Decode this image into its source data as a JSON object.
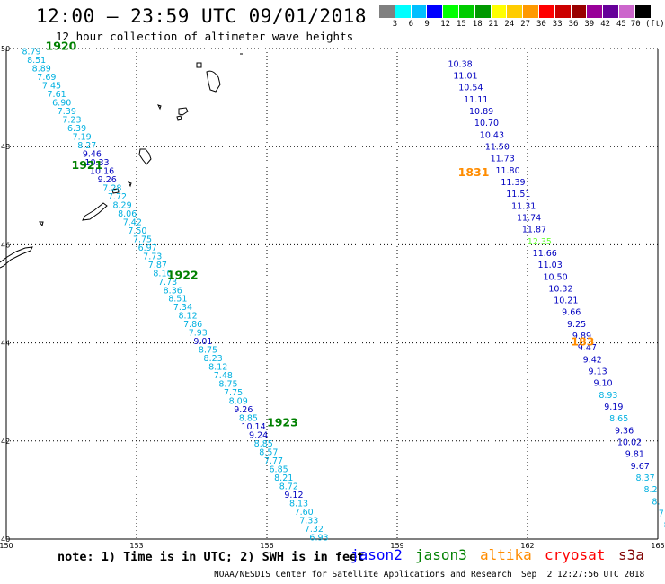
{
  "title": "12:00 — 23:59 UTC 09/01/2018",
  "subtitle": "12 hour collection of altimeter wave heights",
  "colorbar": {
    "colors": [
      "#808080",
      "#00ffff",
      "#00bfff",
      "#0000ff",
      "#00ff00",
      "#00cc00",
      "#009900",
      "#ffff00",
      "#ffcc00",
      "#ff9900",
      "#ff0000",
      "#cc0000",
      "#990000",
      "#990099",
      "#660099",
      "#cc66cc",
      "#000000"
    ],
    "labels": [
      "3",
      "6",
      "9",
      "12",
      "15",
      "18",
      "21",
      "24",
      "27",
      "30",
      "33",
      "36",
      "39",
      "42",
      "45",
      "70 (ft)"
    ]
  },
  "axes": {
    "lon_labels": [
      "150",
      "153",
      "156",
      "159",
      "162",
      "165"
    ],
    "lat_labels": [
      "50",
      "48",
      "46",
      "44",
      "42",
      "40"
    ]
  },
  "map_data": {
    "lon_range": [
      150,
      165
    ],
    "lat_range": [
      40,
      50
    ],
    "track_colors": {
      "light": "#00b0e0",
      "dark": "#0000c0",
      "lime": "#66ff33"
    },
    "times": [
      {
        "label": "1920",
        "lon": 150.9,
        "lat": 49.97,
        "color": "#008000"
      },
      {
        "label": "1921",
        "lon": 151.5,
        "lat": 47.55,
        "color": "#008000"
      },
      {
        "label": "1922",
        "lon": 153.7,
        "lat": 45.3,
        "color": "#008000"
      },
      {
        "label": "1923",
        "lon": 156.0,
        "lat": 42.3,
        "color": "#008000"
      },
      {
        "label": "1831",
        "lon": 160.4,
        "lat": 47.4,
        "color": "#ff8c00"
      },
      {
        "label": "183",
        "lon": 163.0,
        "lat": 43.95,
        "color": "#ff8c00"
      }
    ],
    "tracks": [
      {
        "start": [
          150.58,
          49.95
        ],
        "end": [
          157.2,
          40.05
        ],
        "points": [
          [
            "8.79",
            "l"
          ],
          [
            "8.51",
            "l"
          ],
          [
            "8.89",
            "l"
          ],
          [
            "7.69",
            "l"
          ],
          [
            "7.45",
            "l"
          ],
          [
            "7.61",
            "l"
          ],
          [
            "6.90",
            "l"
          ],
          [
            "7.39",
            "l"
          ],
          [
            "7.23",
            "l"
          ],
          [
            "6.39",
            "l"
          ],
          [
            "7.19",
            "l"
          ],
          [
            "8.27",
            "l"
          ],
          [
            "9.46",
            "d"
          ],
          [
            "10.33",
            "d"
          ],
          [
            "10.16",
            "d"
          ],
          [
            "9.26",
            "d"
          ],
          [
            "7.28",
            "l"
          ],
          [
            "7.72",
            "l"
          ],
          [
            "8.29",
            "l"
          ],
          [
            "8.06",
            "l"
          ],
          [
            "7.42",
            "l"
          ],
          [
            "7.50",
            "l"
          ],
          [
            "7.75",
            "l"
          ],
          [
            "6.97",
            "l"
          ],
          [
            "7.73",
            "l"
          ],
          [
            "7.87",
            "l"
          ],
          [
            "8.10",
            "l"
          ],
          [
            "7.73",
            "l"
          ],
          [
            "8.36",
            "l"
          ],
          [
            "8.51",
            "l"
          ],
          [
            "7.34",
            "l"
          ],
          [
            "8.12",
            "l"
          ],
          [
            "7.86",
            "l"
          ],
          [
            "7.93",
            "l"
          ],
          [
            "9.01",
            "d"
          ],
          [
            "8.75",
            "l"
          ],
          [
            "8.23",
            "l"
          ],
          [
            "8.12",
            "l"
          ],
          [
            "7.48",
            "l"
          ],
          [
            "8.75",
            "l"
          ],
          [
            "7.75",
            "l"
          ],
          [
            "8.09",
            "l"
          ],
          [
            "9.26",
            "d"
          ],
          [
            "8.85",
            "l"
          ],
          [
            "10.14",
            "d"
          ],
          [
            "9.24",
            "d"
          ],
          [
            "8.85",
            "l"
          ],
          [
            "8.57",
            "l"
          ],
          [
            "7.77",
            "l"
          ],
          [
            "6.85",
            "l"
          ],
          [
            "8.21",
            "l"
          ],
          [
            "8.72",
            "l"
          ],
          [
            "9.12",
            "d"
          ],
          [
            "8.13",
            "l"
          ],
          [
            "7.60",
            "l"
          ],
          [
            "7.33",
            "l"
          ],
          [
            "7.32",
            "l"
          ],
          [
            "6.93",
            "l"
          ]
        ]
      },
      {
        "start": [
          160.45,
          49.7
        ],
        "end": [
          165.2,
          40.3
        ],
        "points": [
          [
            "10.38",
            "d"
          ],
          [
            "11.01",
            "d"
          ],
          [
            "10.54",
            "d"
          ],
          [
            "11.11",
            "d"
          ],
          [
            "10.89",
            "d"
          ],
          [
            "10.70",
            "d"
          ],
          [
            "10.43",
            "d"
          ],
          [
            "11.50",
            "d"
          ],
          [
            "11.73",
            "d"
          ],
          [
            "11.80",
            "d"
          ],
          [
            "11.39",
            "d"
          ],
          [
            "11.51",
            "d"
          ],
          [
            "11.31",
            "d"
          ],
          [
            "11.74",
            "d"
          ],
          [
            "11.87",
            "d"
          ],
          [
            "12.35",
            "g"
          ],
          [
            "11.66",
            "d"
          ],
          [
            "11.03",
            "d"
          ],
          [
            "10.50",
            "d"
          ],
          [
            "10.32",
            "d"
          ],
          [
            "10.21",
            "d"
          ],
          [
            "9.66",
            "d"
          ],
          [
            "9.25",
            "d"
          ],
          [
            "9.89",
            "d"
          ],
          [
            "9.47",
            "d"
          ],
          [
            "9.42",
            "d"
          ],
          [
            "9.13",
            "d"
          ],
          [
            "9.10",
            "d"
          ],
          [
            "8.93",
            "l"
          ],
          [
            "9.19",
            "d"
          ],
          [
            "8.65",
            "l"
          ],
          [
            "9.36",
            "d"
          ],
          [
            "10.02",
            "d"
          ],
          [
            "9.81",
            "d"
          ],
          [
            "9.67",
            "d"
          ],
          [
            "8.37",
            "l"
          ],
          [
            "8.2",
            "l"
          ],
          [
            "8.",
            "l"
          ],
          [
            "7",
            "l"
          ],
          [
            "8",
            "l"
          ]
        ]
      }
    ]
  },
  "note": "note: 1) Time is in UTC; 2) SWH is in feet",
  "satellites": [
    {
      "name": "jason2",
      "color": "#0000ff"
    },
    {
      "name": "jason3",
      "color": "#008000"
    },
    {
      "name": "altika",
      "color": "#ff8c00"
    },
    {
      "name": "cryosat",
      "color": "#ff0000"
    },
    {
      "name": "s3a",
      "color": "#800000"
    }
  ],
  "credit": "NOAA/NESDIS Center for Satellite Applications and Research",
  "timestamp": "Sep  2 12:27:56 UTC 2018"
}
